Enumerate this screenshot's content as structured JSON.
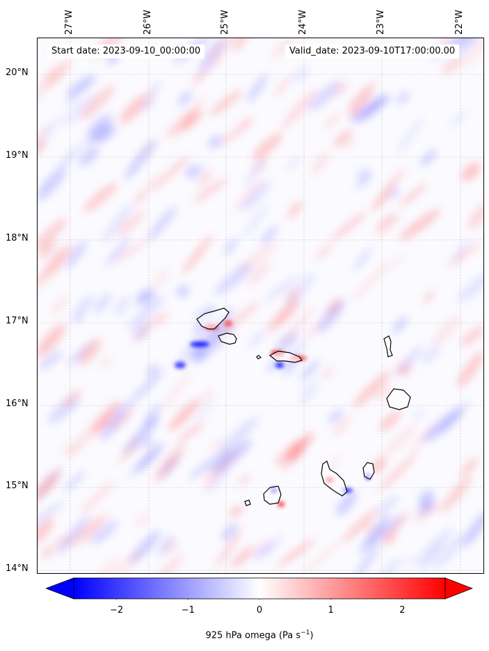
{
  "header": {
    "start_date": "Start date: 2023-09-10_00:00:00",
    "valid_date": "Valid_date: 2023-09-10T17:00:00.00"
  },
  "map": {
    "longitude_labels": [
      "27°W",
      "26°W",
      "25°W",
      "24°W",
      "23°W",
      "22°W"
    ],
    "latitude_labels": [
      "20°N",
      "19°N",
      "18°N",
      "17°N",
      "16°N",
      "15°N",
      "14°N"
    ],
    "field": "925 hPa omega",
    "color_scale": "blue-white-red (bwr)",
    "negative_color": "#0000ff",
    "positive_color": "#ff0000",
    "neutral_color": "#ffffff",
    "coastline_color": "#000000",
    "gridlines": "dotted light gray"
  },
  "colorbar": {
    "ticks": [
      "−2",
      "−1",
      "0",
      "1",
      "2"
    ],
    "tick_values": [
      -2,
      -1,
      0,
      1,
      2
    ],
    "range": [
      -2.6,
      2.6
    ],
    "extend": "both",
    "label_text": "925 hPa omega (Pa s",
    "label_sup": "−1",
    "label_close": ")"
  }
}
